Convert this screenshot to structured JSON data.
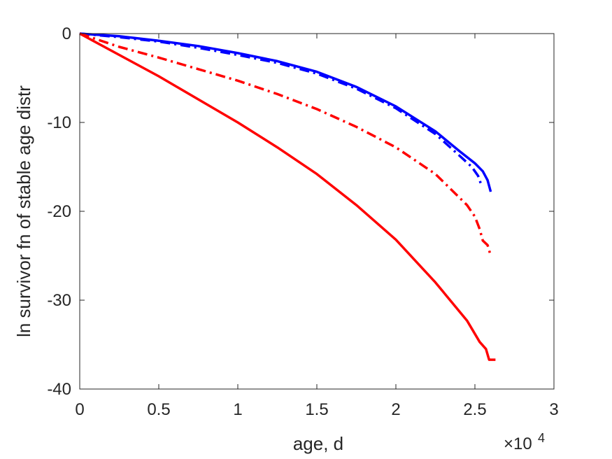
{
  "chart_data": {
    "type": "line",
    "xlabel": "age, d",
    "ylabel": "ln survivor fn of stable age distr",
    "x_multiplier_base": "×10",
    "x_multiplier_exp": "4",
    "xlim": [
      0,
      30000
    ],
    "ylim": [
      -40,
      0
    ],
    "x_ticks": [
      0,
      5000,
      10000,
      15000,
      20000,
      25000,
      30000
    ],
    "x_tick_labels": [
      "0",
      "0.5",
      "1",
      "1.5",
      "2",
      "2.5",
      "3"
    ],
    "y_ticks": [
      0,
      -10,
      -20,
      -30,
      -40
    ],
    "y_tick_labels": [
      "0",
      "-10",
      "-20",
      "-30",
      "-40"
    ],
    "grid": false,
    "colors": {
      "blue": "#0000ff",
      "red": "#ff0000",
      "axis": "#262626"
    },
    "series": [
      {
        "color": "#0000ff",
        "style": "solid",
        "x": [
          0,
          2500,
          5000,
          7500,
          10000,
          12500,
          15000,
          17500,
          20000,
          22500,
          24000,
          25000,
          25500,
          25800,
          26000
        ],
        "y": [
          0,
          -0.3,
          -0.8,
          -1.4,
          -2.2,
          -3.1,
          -4.3,
          -6.0,
          -8.2,
          -11.0,
          -13.2,
          -14.6,
          -15.5,
          -16.5,
          -17.8
        ]
      },
      {
        "color": "#0000ff",
        "style": "dashdot",
        "x": [
          0,
          2500,
          5000,
          7500,
          10000,
          12500,
          15000,
          17500,
          20000,
          22500,
          24000,
          24800,
          25200,
          25400
        ],
        "y": [
          0,
          -0.4,
          -0.9,
          -1.6,
          -2.4,
          -3.3,
          -4.5,
          -6.2,
          -8.4,
          -11.3,
          -13.7,
          -15.0,
          -16.0,
          -17.0
        ]
      },
      {
        "color": "#ff0000",
        "style": "dashdot",
        "x": [
          0,
          2500,
          5000,
          7500,
          10000,
          12500,
          15000,
          17500,
          20000,
          22500,
          24500,
          25000,
          25300,
          25500,
          25800,
          26000
        ],
        "y": [
          0,
          -1.5,
          -2.7,
          -4.0,
          -5.3,
          -6.8,
          -8.5,
          -10.5,
          -12.8,
          -15.8,
          -19.3,
          -20.6,
          -22.0,
          -23.3,
          -23.8,
          -25.0
        ]
      },
      {
        "color": "#ff0000",
        "style": "solid",
        "x": [
          0,
          2500,
          5000,
          7500,
          10000,
          12500,
          15000,
          17500,
          20000,
          22500,
          24500,
          25300,
          25700,
          25900,
          26300
        ],
        "y": [
          0,
          -2.4,
          -4.8,
          -7.4,
          -10.0,
          -12.8,
          -15.8,
          -19.3,
          -23.2,
          -28.0,
          -32.3,
          -34.7,
          -35.5,
          -36.7,
          -36.7
        ]
      }
    ]
  }
}
